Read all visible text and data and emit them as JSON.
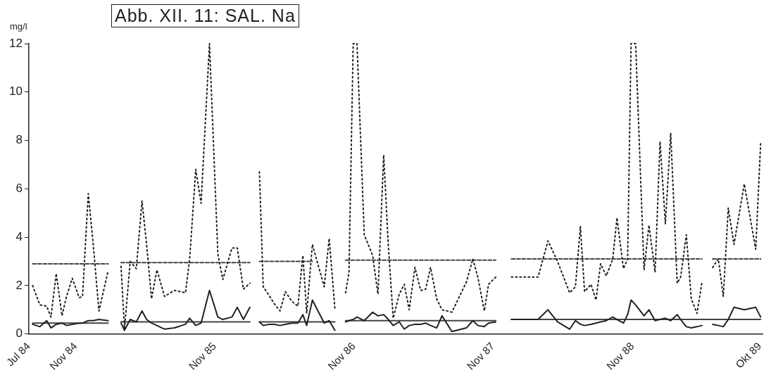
{
  "chart_data": {
    "type": "line",
    "title": "Abb. XII. 11: SAL. Na",
    "ylabel": "mg/l",
    "xlim": [
      "1984-07-01",
      "1989-10-08"
    ],
    "ylim": [
      0,
      12
    ],
    "yticks": [
      0,
      2,
      4,
      6,
      8,
      10,
      12
    ],
    "xticks": [
      {
        "value": "1984-07-01",
        "label": "Jul 84"
      },
      {
        "value": "1984-11-01",
        "label": "Nov 84"
      },
      {
        "value": "1985-11-01",
        "label": "Nov 85"
      },
      {
        "value": "1986-11-01",
        "label": "Nov 86"
      },
      {
        "value": "1987-11-01",
        "label": "Nov 87"
      },
      {
        "value": "1988-11-01",
        "label": "Nov 88"
      },
      {
        "value": "1989-10-01",
        "label": "Okt 89"
      }
    ],
    "series": [
      {
        "type": "line",
        "line_style": "dotted",
        "color": "#222222",
        "x": [
          "1984-07-11",
          "1984-07-30",
          "1984-08-17",
          "1984-08-28",
          "1984-09-11",
          "1984-09-26",
          "1984-10-08",
          "1984-10-23",
          "1984-11-10",
          "1984-11-19",
          "1984-12-04",
          "1984-12-17",
          "1985-01-01",
          "1985-01-25",
          "1985-02-10",
          "1985-02-28",
          "1985-03-09",
          "1985-03-24",
          "1985-04-09",
          "1985-04-24",
          "1985-05-06",
          "1985-05-19",
          "1985-06-02",
          "1985-06-22",
          "1985-07-18",
          "1985-08-16",
          "1985-08-27",
          "1985-09-12",
          "1985-09-26",
          "1985-10-18",
          "1985-11-09",
          "1985-11-22",
          "1985-12-16",
          "1985-12-30",
          "1986-01-15",
          "1986-02-01",
          "1986-02-20",
          "1986-02-26",
          "1986-03-08",
          "1986-03-23",
          "1986-04-06",
          "1986-04-21",
          "1986-05-05",
          "1986-05-22",
          "1986-06-07",
          "1986-06-20",
          "1986-06-30",
          "1986-07-15",
          "1986-08-15",
          "1986-08-28",
          "1986-09-12",
          "1986-10-01",
          "1986-10-10",
          "1986-10-19",
          "1986-10-30",
          "1986-11-09",
          "1986-11-28",
          "1986-12-20",
          "1987-01-03",
          "1987-01-18",
          "1987-01-30",
          "1987-02-12",
          "1987-02-28",
          "1987-03-13",
          "1987-03-26",
          "1987-04-10",
          "1987-04-25",
          "1987-05-08",
          "1987-05-21",
          "1987-06-06",
          "1987-06-20",
          "1987-07-16",
          "1987-08-23",
          "1987-09-09",
          "1987-09-22",
          "1987-10-09",
          "1987-10-20",
          "1987-11-08",
          "1987-11-25",
          "1987-12-19",
          "1988-01-26",
          "1988-02-27",
          "1988-03-24",
          "1988-04-18",
          "1988-05-20",
          "1988-06-04",
          "1988-06-17",
          "1988-06-28",
          "1988-07-15",
          "1988-07-28",
          "1988-08-09",
          "1988-08-24",
          "1988-09-10",
          "1988-09-21",
          "1988-10-08",
          "1988-10-19",
          "1988-10-28",
          "1988-11-09",
          "1988-12-01",
          "1988-12-14",
          "1988-12-30",
          "1989-01-12",
          "1989-01-26",
          "1989-02-09",
          "1989-02-26",
          "1989-03-07",
          "1989-03-22",
          "1989-04-04",
          "1989-04-19",
          "1989-05-02",
          "1989-05-16",
          "1989-05-30",
          "1989-06-14",
          "1989-06-27",
          "1989-07-10",
          "1989-07-25",
          "1989-08-21",
          "1989-09-20",
          "1989-10-03"
        ],
        "values": [
          2.0,
          1.2,
          1.15,
          0.7,
          2.5,
          0.75,
          1.55,
          2.3,
          1.5,
          1.55,
          5.8,
          3.7,
          0.95,
          2.6,
          null,
          2.8,
          0.2,
          3.0,
          2.7,
          5.5,
          3.7,
          1.45,
          2.65,
          1.55,
          1.8,
          1.7,
          3.1,
          6.8,
          5.4,
          12,
          3.3,
          2.25,
          3.55,
          3.55,
          1.85,
          2.1,
          null,
          6.7,
          1.95,
          1.6,
          1.25,
          0.95,
          1.75,
          1.35,
          1.15,
          3.25,
          0.85,
          3.7,
          1.95,
          3.95,
          1.05,
          null,
          1.7,
          2.55,
          12,
          12,
          4.1,
          3.25,
          1.65,
          7.4,
          3.7,
          0.65,
          1.65,
          2.05,
          1.0,
          2.75,
          1.8,
          1.85,
          2.75,
          1.45,
          1.0,
          0.9,
          2.15,
          3.1,
          2.35,
          0.95,
          2.05,
          2.35,
          null,
          2.35,
          2.35,
          2.35,
          3.85,
          3.0,
          1.7,
          1.95,
          4.45,
          1.75,
          2.05,
          1.4,
          2.9,
          2.4,
          3.1,
          4.8,
          2.7,
          3.1,
          12,
          12,
          2.65,
          4.5,
          2.55,
          7.95,
          4.55,
          8.3,
          2.1,
          2.35,
          4.1,
          1.45,
          0.85,
          2.15,
          null,
          2.75,
          3.1,
          1.55,
          5.2,
          3.7,
          6.2,
          3.5,
          7.9
        ]
      },
      {
        "type": "line",
        "line_style": "solid",
        "color": "#222222",
        "x": [
          "1984-07-11",
          "1984-07-30",
          "1984-08-17",
          "1984-08-28",
          "1984-09-11",
          "1984-09-26",
          "1984-10-08",
          "1984-10-23",
          "1984-11-10",
          "1984-11-19",
          "1984-12-04",
          "1984-12-17",
          "1985-01-01",
          "1985-01-25",
          "1985-02-10",
          "1985-02-28",
          "1985-03-09",
          "1985-03-24",
          "1985-04-09",
          "1985-04-24",
          "1985-05-06",
          "1985-05-19",
          "1985-06-02",
          "1985-06-22",
          "1985-07-18",
          "1985-08-16",
          "1985-08-27",
          "1985-09-12",
          "1985-09-26",
          "1985-10-18",
          "1985-11-09",
          "1985-11-22",
          "1985-12-16",
          "1985-12-30",
          "1986-01-15",
          "1986-02-01",
          "1986-02-20",
          "1986-02-26",
          "1986-03-08",
          "1986-03-23",
          "1986-04-06",
          "1986-04-21",
          "1986-05-05",
          "1986-05-22",
          "1986-06-07",
          "1986-06-20",
          "1986-06-30",
          "1986-07-15",
          "1986-08-15",
          "1986-08-28",
          "1986-09-12",
          "1986-10-01",
          "1986-10-10",
          "1986-10-19",
          "1986-10-30",
          "1986-11-09",
          "1986-11-28",
          "1986-12-20",
          "1987-01-03",
          "1987-01-18",
          "1987-01-30",
          "1987-02-12",
          "1987-02-28",
          "1987-03-13",
          "1987-03-26",
          "1987-04-10",
          "1987-04-25",
          "1987-05-08",
          "1987-05-21",
          "1987-06-06",
          "1987-06-20",
          "1987-07-16",
          "1987-08-23",
          "1987-09-09",
          "1987-09-22",
          "1987-10-09",
          "1987-10-20",
          "1987-11-08",
          "1987-11-25",
          "1987-12-19",
          "1988-01-26",
          "1988-02-27",
          "1988-03-24",
          "1988-04-18",
          "1988-05-20",
          "1988-06-04",
          "1988-06-17",
          "1988-06-28",
          "1988-07-15",
          "1988-07-28",
          "1988-08-09",
          "1988-08-24",
          "1988-09-10",
          "1988-09-21",
          "1988-10-08",
          "1988-10-19",
          "1988-10-28",
          "1988-11-09",
          "1988-12-01",
          "1988-12-14",
          "1988-12-30",
          "1989-01-12",
          "1989-01-26",
          "1989-02-09",
          "1989-02-26",
          "1989-03-07",
          "1989-03-22",
          "1989-04-04",
          "1989-04-19",
          "1989-05-02",
          "1989-05-16",
          "1989-05-30",
          "1989-06-14",
          "1989-06-27",
          "1989-07-10",
          "1989-07-25",
          "1989-08-21",
          "1989-09-20",
          "1989-10-03"
        ],
        "values": [
          0.4,
          0.3,
          0.55,
          0.25,
          0.4,
          0.45,
          0.35,
          0.4,
          0.45,
          0.45,
          0.55,
          0.55,
          0.6,
          0.55,
          null,
          0.45,
          0.15,
          0.6,
          0.5,
          0.95,
          0.6,
          0.45,
          0.35,
          0.2,
          0.25,
          0.4,
          0.65,
          0.35,
          0.45,
          1.8,
          0.7,
          0.6,
          0.7,
          1.1,
          0.6,
          1.1,
          null,
          0.5,
          0.35,
          0.4,
          0.4,
          0.35,
          0.4,
          0.45,
          0.45,
          0.8,
          0.35,
          1.4,
          0.45,
          0.55,
          0.15,
          null,
          0.5,
          0.55,
          0.6,
          0.7,
          0.55,
          0.9,
          0.75,
          0.8,
          0.6,
          0.35,
          0.5,
          0.2,
          0.35,
          0.4,
          0.4,
          0.45,
          0.35,
          0.25,
          0.75,
          0.1,
          0.25,
          0.55,
          0.35,
          0.3,
          0.45,
          0.5,
          null,
          0.6,
          0.6,
          0.6,
          1.0,
          0.5,
          0.2,
          0.55,
          0.4,
          0.35,
          0.4,
          0.45,
          0.5,
          0.55,
          0.7,
          0.6,
          0.45,
          0.8,
          1.4,
          1.2,
          0.75,
          1.0,
          0.55,
          0.6,
          0.65,
          0.55,
          0.8,
          0.6,
          0.3,
          0.25,
          0.3,
          0.35,
          null,
          0.4,
          0.35,
          0.3,
          0.6,
          1.1,
          1.0,
          1.1,
          0.7
        ]
      },
      {
        "type": "line",
        "line_style": "dashed",
        "color": "#444444",
        "x": [
          "1984-07-11",
          "1985-01-25"
        ],
        "values": [
          2.9,
          2.9
        ]
      },
      {
        "type": "line",
        "line_style": "dashed",
        "color": "#444444",
        "x": [
          "1985-02-28",
          "1986-02-01"
        ],
        "values": [
          2.95,
          2.95
        ]
      },
      {
        "type": "line",
        "line_style": "dashed",
        "color": "#444444",
        "x": [
          "1986-02-26",
          "1986-07-15"
        ],
        "values": [
          3.0,
          3.0
        ]
      },
      {
        "type": "line",
        "line_style": "dashed",
        "color": "#444444",
        "x": [
          "1986-10-10",
          "1987-11-08"
        ],
        "values": [
          3.05,
          3.05
        ]
      },
      {
        "type": "line",
        "line_style": "dashed",
        "color": "#444444",
        "x": [
          "1987-12-19",
          "1989-05-02"
        ],
        "values": [
          3.1,
          3.1
        ]
      },
      {
        "type": "line",
        "line_style": "dashed",
        "color": "#444444",
        "x": [
          "1989-05-30",
          "1989-10-03"
        ],
        "values": [
          3.1,
          3.1
        ]
      },
      {
        "type": "line",
        "line_style": "solid",
        "color": "#444444",
        "x": [
          "1984-07-11",
          "1985-01-25"
        ],
        "values": [
          0.45,
          0.45
        ]
      },
      {
        "type": "line",
        "line_style": "solid",
        "color": "#444444",
        "x": [
          "1985-02-28",
          "1986-02-01"
        ],
        "values": [
          0.5,
          0.5
        ]
      },
      {
        "type": "line",
        "line_style": "solid",
        "color": "#444444",
        "x": [
          "1986-02-26",
          "1986-09-12"
        ],
        "values": [
          0.5,
          0.5
        ]
      },
      {
        "type": "line",
        "line_style": "solid",
        "color": "#444444",
        "x": [
          "1986-10-10",
          "1987-11-08"
        ],
        "values": [
          0.55,
          0.55
        ]
      },
      {
        "type": "line",
        "line_style": "solid",
        "color": "#444444",
        "x": [
          "1987-12-19",
          "1989-10-03"
        ],
        "values": [
          0.6,
          0.6
        ]
      }
    ]
  }
}
